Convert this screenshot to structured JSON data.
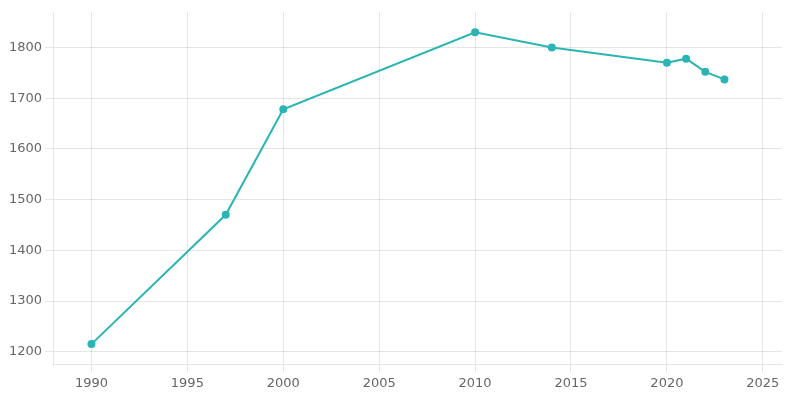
{
  "chart_data": {
    "type": "line",
    "x": [
      1990,
      1997,
      2000,
      2010,
      2014,
      2020,
      2021,
      2022,
      2023
    ],
    "values": [
      1215,
      1470,
      1678,
      1830,
      1800,
      1770,
      1778,
      1752,
      1737
    ],
    "color": "#2ab5b5",
    "marker": "o",
    "xlim": [
      1988,
      2026
    ],
    "ylim": [
      1175,
      1870
    ],
    "xticks": [
      1990,
      1995,
      2000,
      2005,
      2010,
      2015,
      2020,
      2025
    ],
    "yticks": [
      1200,
      1300,
      1400,
      1500,
      1600,
      1700,
      1800
    ],
    "grid": true
  }
}
